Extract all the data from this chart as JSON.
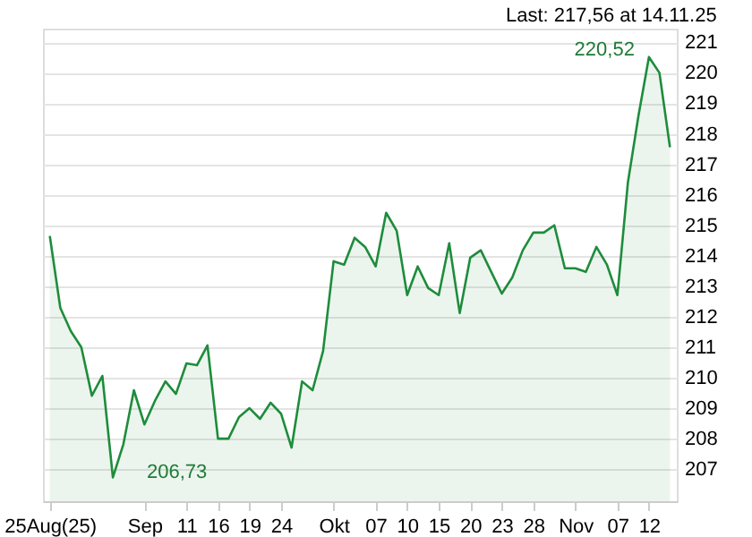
{
  "chart_data": {
    "type": "area",
    "title": "Last: 217,56 at 14.11.25",
    "categories": [
      "25Aug(25)",
      null,
      null,
      null,
      null,
      null,
      null,
      null,
      null,
      "Sep",
      null,
      null,
      null,
      "11",
      null,
      null,
      "16",
      null,
      null,
      "19",
      null,
      null,
      "24",
      null,
      null,
      null,
      null,
      "Okt",
      null,
      null,
      null,
      "07",
      null,
      null,
      "10",
      null,
      null,
      "15",
      null,
      null,
      "20",
      null,
      null,
      "23",
      null,
      null,
      "28",
      null,
      null,
      null,
      "Nov",
      null,
      null,
      null,
      "07",
      null,
      null,
      "12",
      null,
      null
    ],
    "series": [
      {
        "color": "#1e8c3c",
        "values": [
          214.65,
          212.29,
          211.53,
          211.0,
          209.41,
          210.06,
          206.73,
          207.82,
          209.59,
          208.47,
          209.24,
          209.88,
          209.47,
          210.47,
          210.41,
          211.06,
          208.0,
          208.0,
          208.71,
          209.0,
          208.65,
          209.18,
          208.82,
          207.71,
          209.88,
          209.59,
          210.88,
          213.82,
          213.71,
          214.59,
          214.29,
          213.65,
          215.41,
          214.82,
          212.71,
          213.65,
          212.94,
          212.71,
          214.41,
          212.12,
          213.94,
          214.18,
          213.47,
          212.76,
          213.29,
          214.18,
          214.76,
          214.76,
          215.0,
          213.59,
          213.59,
          213.47,
          214.29,
          213.71,
          212.71,
          216.41,
          218.59,
          220.52,
          220.0,
          217.56
        ]
      }
    ],
    "ylim": [
      205.95,
      221.45
    ],
    "yticks": [
      207,
      208,
      209,
      210,
      211,
      212,
      213,
      214,
      215,
      216,
      217,
      218,
      219,
      220,
      221
    ],
    "annotations": [
      {
        "text": "220,52",
        "x": "12",
        "y": 220.52
      },
      "206,73"
    ],
    "grid": "y"
  }
}
